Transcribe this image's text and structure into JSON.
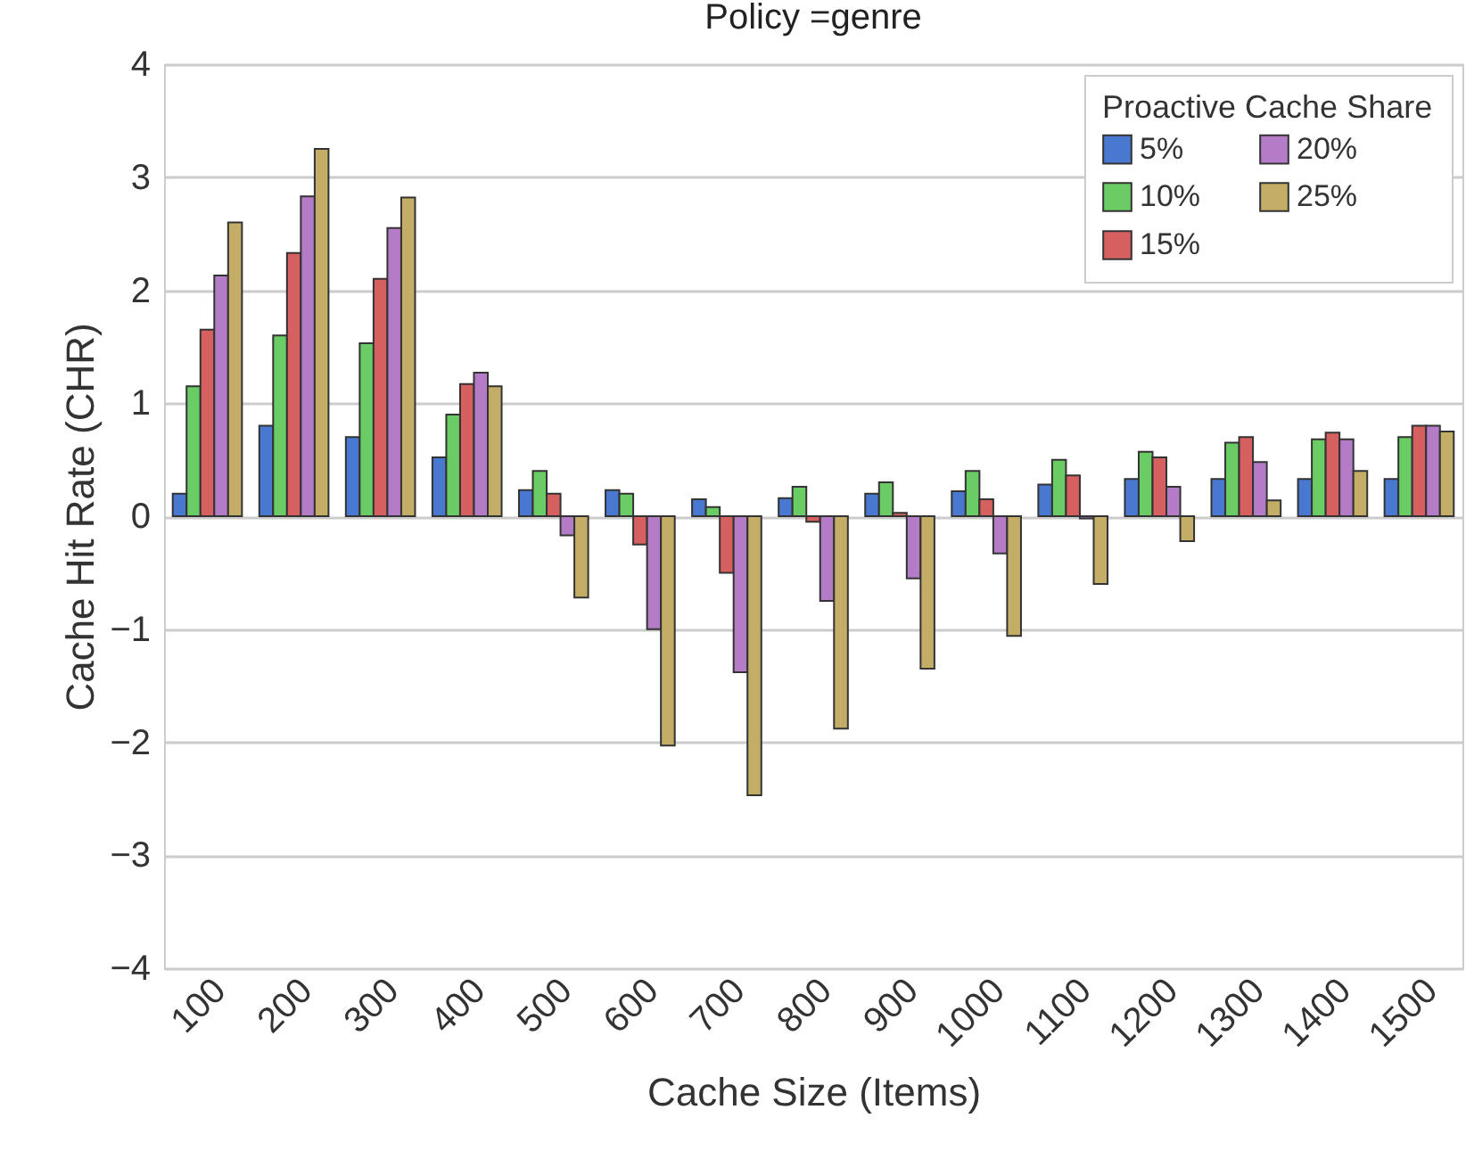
{
  "chart_data": {
    "type": "bar",
    "title": "Policy =genre",
    "xlabel": "Cache Size (Items)",
    "ylabel": "Cache Hit Rate (CHR)",
    "legend_title": "Proactive Cache Share",
    "categories": [
      "100",
      "200",
      "300",
      "400",
      "500",
      "600",
      "700",
      "800",
      "900",
      "1000",
      "1100",
      "1200",
      "1300",
      "1400",
      "1500"
    ],
    "series": [
      {
        "name": "5%",
        "color": "#4878cf",
        "values": [
          0.2,
          0.8,
          0.7,
          0.52,
          0.23,
          0.23,
          0.15,
          0.16,
          0.2,
          0.22,
          0.28,
          0.33,
          0.33,
          0.33,
          0.33
        ]
      },
      {
        "name": "10%",
        "color": "#6acc65",
        "values": [
          1.15,
          1.6,
          1.53,
          0.9,
          0.4,
          0.2,
          0.08,
          0.26,
          0.3,
          0.4,
          0.5,
          0.57,
          0.65,
          0.68,
          0.7
        ]
      },
      {
        "name": "15%",
        "color": "#d65f5f",
        "values": [
          1.65,
          2.33,
          2.1,
          1.17,
          0.2,
          -0.25,
          -0.5,
          -0.05,
          0.03,
          0.15,
          0.36,
          0.52,
          0.7,
          0.74,
          0.8
        ]
      },
      {
        "name": "20%",
        "color": "#b47cc7",
        "values": [
          2.13,
          2.83,
          2.55,
          1.27,
          -0.17,
          -1.0,
          -1.38,
          -0.75,
          -0.55,
          -0.33,
          -0.02,
          0.26,
          0.48,
          0.68,
          0.8
        ]
      },
      {
        "name": "25%",
        "color": "#c4ad66",
        "values": [
          2.6,
          3.25,
          2.82,
          1.15,
          -0.72,
          -2.03,
          -2.47,
          -1.88,
          -1.35,
          -1.06,
          -0.6,
          -0.22,
          0.14,
          0.4,
          0.75
        ]
      }
    ],
    "ylim": [
      -4,
      4
    ],
    "yticks": [
      -4,
      -3,
      -2,
      -1,
      0,
      1,
      2,
      3,
      4
    ],
    "grid": "y",
    "legend": "top right"
  }
}
